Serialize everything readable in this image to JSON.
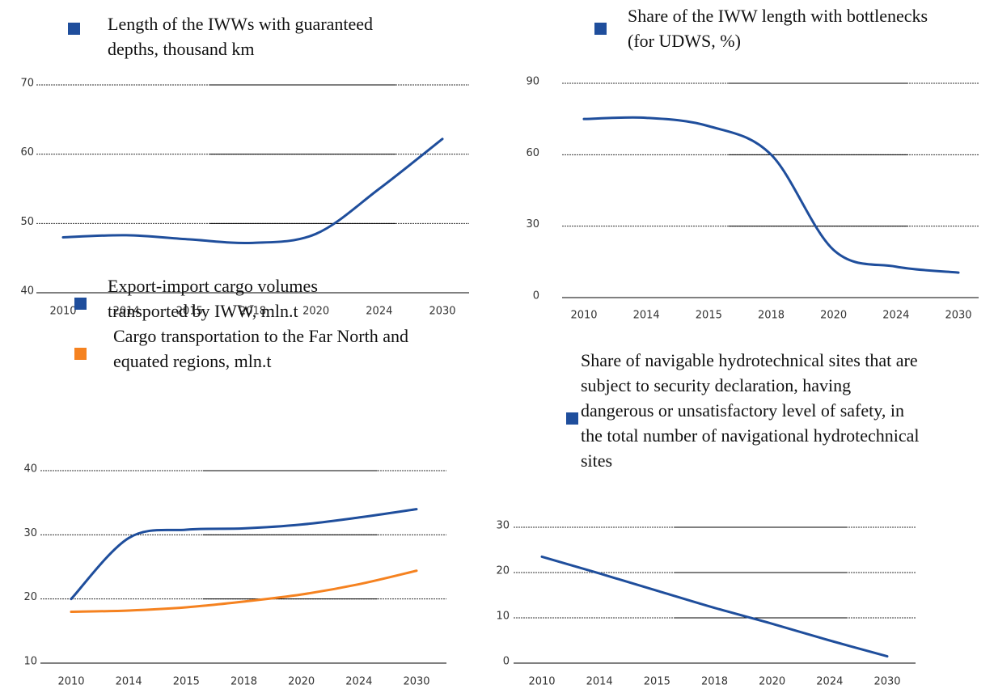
{
  "chart_data": [
    {
      "type": "line",
      "categories": [
        "2010",
        "2014",
        "2015",
        "2018",
        "2020",
        "2024",
        "2030"
      ],
      "series": [
        {
          "name": "Length of the IWWs with guaranteed depths, thousand km",
          "color": "#1f4e9c",
          "values": [
            48,
            48.3,
            47.7,
            47.2,
            48.5,
            55,
            62.2
          ]
        }
      ],
      "ylim": [
        40,
        70
      ],
      "yticks": [
        40,
        50,
        60,
        70
      ],
      "grid": true
    },
    {
      "type": "line",
      "categories": [
        "2010",
        "2014",
        "2015",
        "2018",
        "2020",
        "2024",
        "2030"
      ],
      "series": [
        {
          "name": "Share of the IWW length with bottlenecks (for UDWS, %)",
          "color": "#1f4e9c",
          "values": [
            75,
            75.5,
            72,
            60,
            20,
            13,
            10.5
          ]
        }
      ],
      "ylim": [
        0,
        90
      ],
      "yticks": [
        0,
        30,
        60,
        90
      ],
      "grid": true
    },
    {
      "type": "line",
      "categories": [
        "2010",
        "2014",
        "2015",
        "2018",
        "2020",
        "2024",
        "2030"
      ],
      "series": [
        {
          "name": "Export-import cargo volumes transported by IWW, mln.t",
          "color": "#1f4e9c",
          "values": [
            20,
            29.5,
            30.8,
            31,
            31.6,
            32.7,
            34
          ]
        },
        {
          "name": "Cargo transportation to the Far North and equated regions, mln.t",
          "color": "#f58220",
          "values": [
            18,
            18.2,
            18.7,
            19.6,
            20.7,
            22.3,
            24.4
          ]
        }
      ],
      "ylim": [
        10,
        40
      ],
      "yticks": [
        10,
        20,
        30,
        40
      ],
      "grid": true
    },
    {
      "type": "line",
      "categories": [
        "2010",
        "2014",
        "2015",
        "2018",
        "2020",
        "2024",
        "2030"
      ],
      "series": [
        {
          "name": "Share of navigable hydrotechnical sites that are subject to security declaration, having dangerous or unsatisfactory level of safety, in the total number of navigational hydrotechnical sites",
          "color": "#1f4e9c",
          "values": [
            23.5,
            19.8,
            16,
            12.2,
            8.7,
            5,
            1.5
          ]
        }
      ],
      "ylim": [
        0,
        30
      ],
      "yticks": [
        0,
        10,
        20,
        30
      ],
      "grid": true
    }
  ]
}
